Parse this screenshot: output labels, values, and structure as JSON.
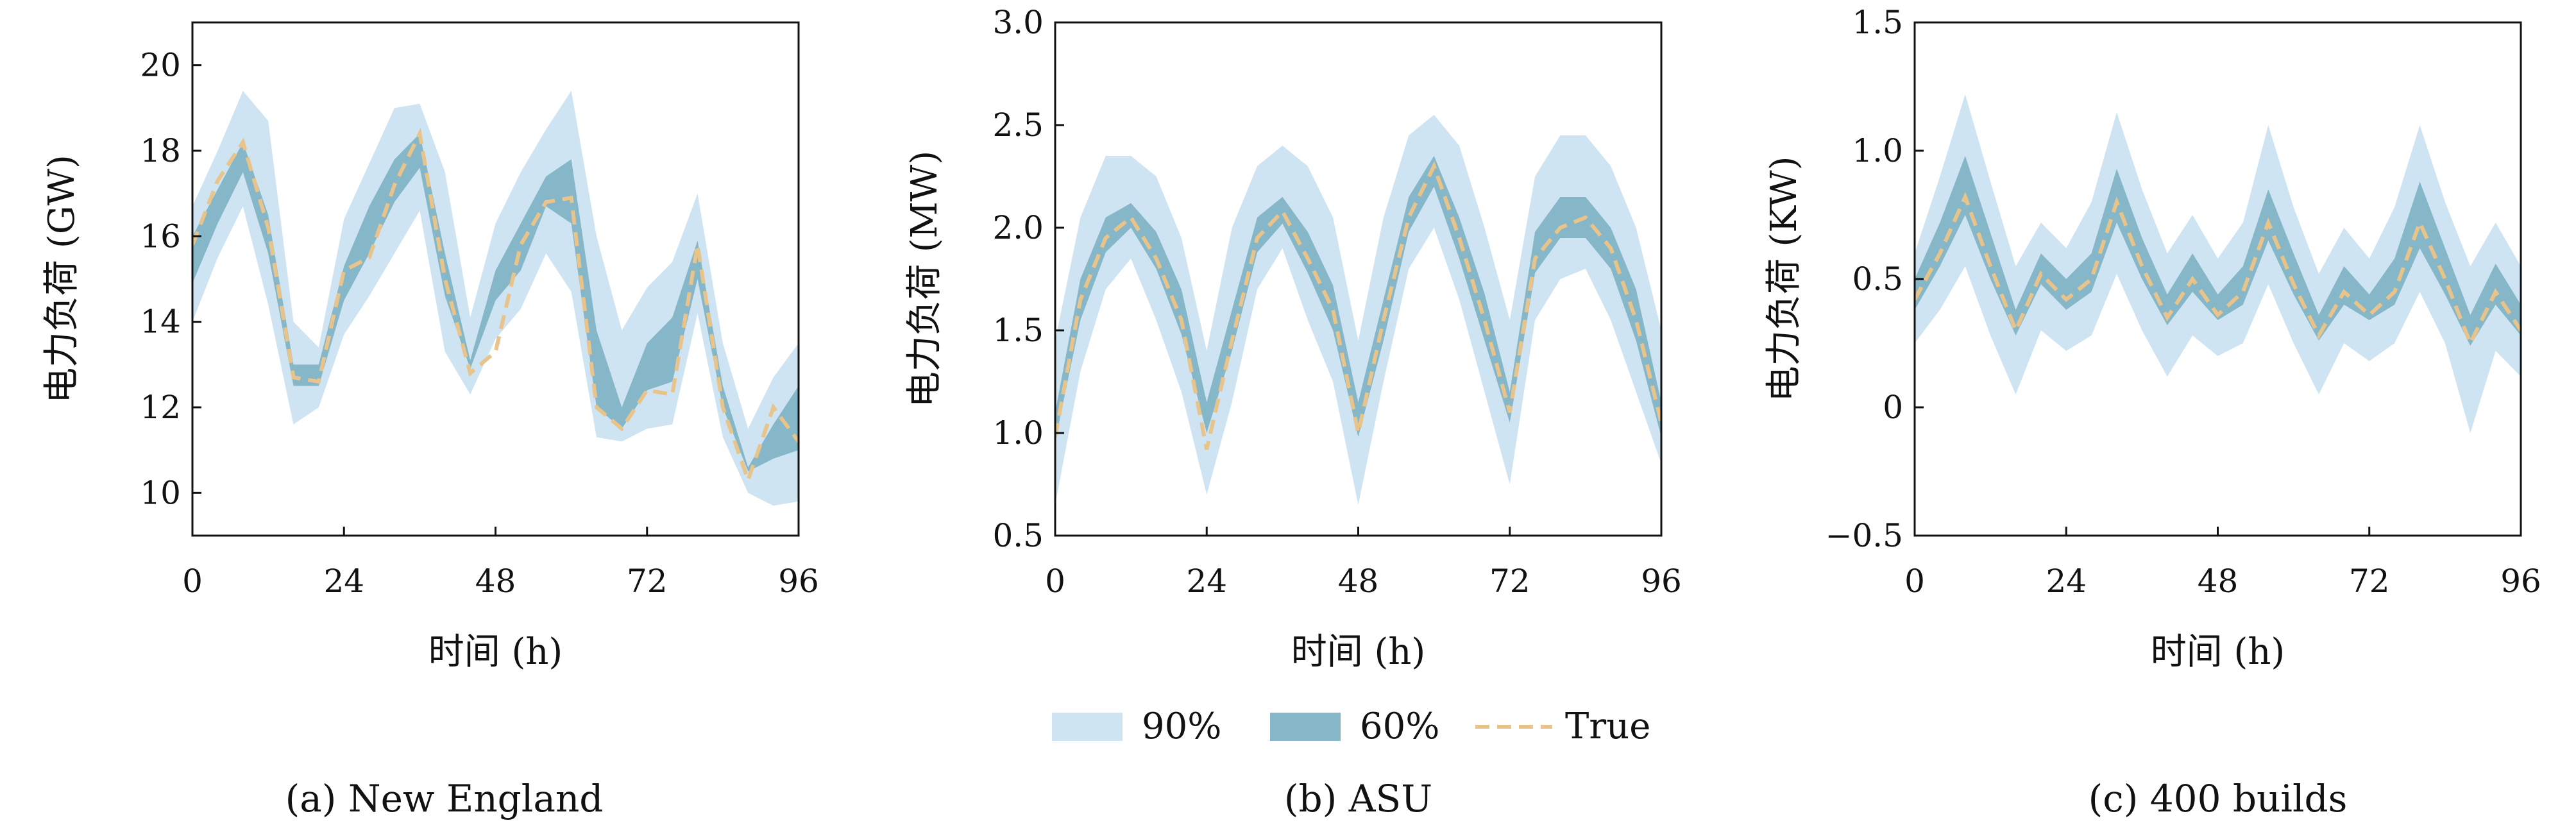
{
  "colors": {
    "band90": "#cfe4f2",
    "band60": "#86b7c8",
    "true_line": "#e8c38a"
  },
  "legend": [
    {
      "key": "band90",
      "label": "90%"
    },
    {
      "key": "band60",
      "label": "60%"
    },
    {
      "key": "true_line",
      "label": "True"
    }
  ],
  "chart_data": [
    {
      "type": "area",
      "caption": "(a) New England",
      "xlabel": "时间 (h)",
      "ylabel": "电力负荷 (GW)",
      "xlim": [
        0,
        96
      ],
      "ylim": [
        9,
        21
      ],
      "xticks": [
        0,
        24,
        48,
        72,
        96
      ],
      "yticks": [
        10,
        12,
        14,
        16,
        18,
        20
      ],
      "ytick_labels": [
        "10",
        "12",
        "14",
        "16",
        "18",
        "20"
      ],
      "x": [
        0,
        4,
        8,
        12,
        16,
        20,
        24,
        28,
        32,
        36,
        40,
        44,
        48,
        52,
        56,
        60,
        64,
        68,
        72,
        76,
        80,
        84,
        88,
        92,
        96
      ],
      "true": [
        15.8,
        17.3,
        18.2,
        16.2,
        12.7,
        12.6,
        15.2,
        15.5,
        17.2,
        18.4,
        15.0,
        12.8,
        13.3,
        15.8,
        16.8,
        16.9,
        12.0,
        11.5,
        12.4,
        12.3,
        15.8,
        12.0,
        10.3,
        12.0,
        11.2
      ],
      "p60_low": [
        14.9,
        16.3,
        17.5,
        15.6,
        12.5,
        12.5,
        14.5,
        15.6,
        16.8,
        17.6,
        14.6,
        12.9,
        14.5,
        15.2,
        16.7,
        16.3,
        12.0,
        11.5,
        12.4,
        12.6,
        15.0,
        12.0,
        10.5,
        10.8,
        11.0
      ],
      "p60_high": [
        16.0,
        17.1,
        18.2,
        16.5,
        13.0,
        13.0,
        15.3,
        16.7,
        17.8,
        18.4,
        15.6,
        13.1,
        15.2,
        16.3,
        17.4,
        17.8,
        13.8,
        12.0,
        13.5,
        14.1,
        15.9,
        12.5,
        10.6,
        11.6,
        12.5
      ],
      "p90_low": [
        14.0,
        15.5,
        16.7,
        14.4,
        11.6,
        12.0,
        13.7,
        14.6,
        15.6,
        16.6,
        13.3,
        12.3,
        13.6,
        14.3,
        15.6,
        14.7,
        11.3,
        11.2,
        11.5,
        11.6,
        14.2,
        11.3,
        10.0,
        9.7,
        9.8
      ],
      "p90_high": [
        16.7,
        18.0,
        19.4,
        18.7,
        14.0,
        13.4,
        16.4,
        17.7,
        19.0,
        19.1,
        17.5,
        14.1,
        16.3,
        17.5,
        18.5,
        19.4,
        16.0,
        13.8,
        14.8,
        15.4,
        17.0,
        13.5,
        11.5,
        12.7,
        13.5
      ]
    },
    {
      "type": "area",
      "caption": "(b) ASU",
      "xlabel": "时间 (h)",
      "ylabel": "电力负荷 (MW)",
      "xlim": [
        0,
        96
      ],
      "ylim": [
        0.5,
        3.0
      ],
      "xticks": [
        0,
        24,
        48,
        72,
        96
      ],
      "yticks": [
        0.5,
        1.0,
        1.5,
        2.0,
        2.5,
        3.0
      ],
      "ytick_labels": [
        "0.5",
        "1.0",
        "1.5",
        "2.0",
        "2.5",
        "3.0"
      ],
      "x": [
        0,
        4,
        8,
        12,
        16,
        20,
        24,
        28,
        32,
        36,
        40,
        44,
        48,
        52,
        56,
        60,
        64,
        68,
        72,
        76,
        80,
        84,
        88,
        92,
        96
      ],
      "true": [
        0.98,
        1.65,
        1.95,
        2.05,
        1.85,
        1.55,
        0.92,
        1.45,
        1.95,
        2.08,
        1.85,
        1.6,
        1.0,
        1.55,
        2.05,
        2.3,
        1.95,
        1.55,
        1.1,
        1.85,
        2.0,
        2.05,
        1.9,
        1.55,
        1.05
      ],
      "p60_low": [
        0.96,
        1.55,
        1.88,
        2.0,
        1.8,
        1.48,
        1.0,
        1.4,
        1.88,
        2.02,
        1.78,
        1.5,
        0.98,
        1.45,
        1.98,
        2.2,
        1.85,
        1.45,
        1.05,
        1.78,
        1.95,
        1.95,
        1.8,
        1.45,
        0.98
      ],
      "p60_high": [
        1.1,
        1.75,
        2.05,
        2.12,
        1.98,
        1.7,
        1.15,
        1.6,
        2.05,
        2.15,
        1.98,
        1.72,
        1.15,
        1.65,
        2.15,
        2.35,
        2.05,
        1.68,
        1.2,
        1.98,
        2.15,
        2.15,
        2.0,
        1.7,
        1.15
      ],
      "p90_low": [
        0.65,
        1.3,
        1.7,
        1.85,
        1.55,
        1.2,
        0.7,
        1.15,
        1.7,
        1.9,
        1.55,
        1.25,
        0.65,
        1.25,
        1.8,
        2.0,
        1.65,
        1.2,
        0.75,
        1.55,
        1.75,
        1.8,
        1.55,
        1.2,
        0.85
      ],
      "p90_high": [
        1.45,
        2.05,
        2.35,
        2.35,
        2.25,
        1.95,
        1.4,
        2.0,
        2.3,
        2.4,
        2.3,
        2.05,
        1.45,
        2.05,
        2.45,
        2.55,
        2.4,
        2.0,
        1.55,
        2.25,
        2.45,
        2.45,
        2.3,
        2.0,
        1.5
      ]
    },
    {
      "type": "area",
      "caption": "(c) 400 builds",
      "xlabel": "时间 (h)",
      "ylabel": "电力负荷 (KW)",
      "xlim": [
        0,
        96
      ],
      "ylim": [
        -0.5,
        1.5
      ],
      "xticks": [
        0,
        24,
        48,
        72,
        96
      ],
      "yticks": [
        -0.5,
        0,
        0.5,
        1.0,
        1.5
      ],
      "ytick_labels": [
        "−0.5",
        "0",
        "0.5",
        "1.0",
        "1.5"
      ],
      "x": [
        0,
        4,
        8,
        12,
        16,
        20,
        24,
        28,
        32,
        36,
        40,
        44,
        48,
        52,
        56,
        60,
        64,
        68,
        72,
        76,
        80,
        84,
        88,
        92,
        96
      ],
      "true": [
        0.42,
        0.6,
        0.82,
        0.55,
        0.3,
        0.52,
        0.42,
        0.5,
        0.8,
        0.55,
        0.35,
        0.5,
        0.36,
        0.45,
        0.72,
        0.48,
        0.28,
        0.45,
        0.36,
        0.45,
        0.72,
        0.5,
        0.25,
        0.45,
        0.3
      ],
      "p60_low": [
        0.38,
        0.55,
        0.75,
        0.5,
        0.28,
        0.48,
        0.38,
        0.45,
        0.72,
        0.5,
        0.32,
        0.45,
        0.34,
        0.4,
        0.65,
        0.44,
        0.26,
        0.4,
        0.34,
        0.4,
        0.62,
        0.44,
        0.24,
        0.4,
        0.28
      ],
      "p60_high": [
        0.5,
        0.72,
        0.98,
        0.68,
        0.38,
        0.6,
        0.5,
        0.6,
        0.93,
        0.66,
        0.44,
        0.6,
        0.44,
        0.55,
        0.85,
        0.6,
        0.36,
        0.55,
        0.44,
        0.58,
        0.88,
        0.62,
        0.36,
        0.56,
        0.4
      ],
      "p90_low": [
        0.25,
        0.38,
        0.55,
        0.28,
        0.05,
        0.3,
        0.22,
        0.28,
        0.52,
        0.3,
        0.12,
        0.28,
        0.2,
        0.25,
        0.48,
        0.25,
        0.05,
        0.25,
        0.18,
        0.25,
        0.45,
        0.25,
        -0.1,
        0.22,
        0.12
      ],
      "p90_high": [
        0.6,
        0.9,
        1.22,
        0.88,
        0.55,
        0.72,
        0.62,
        0.8,
        1.15,
        0.85,
        0.6,
        0.75,
        0.58,
        0.72,
        1.1,
        0.78,
        0.52,
        0.7,
        0.58,
        0.78,
        1.1,
        0.8,
        0.55,
        0.72,
        0.55
      ]
    }
  ]
}
